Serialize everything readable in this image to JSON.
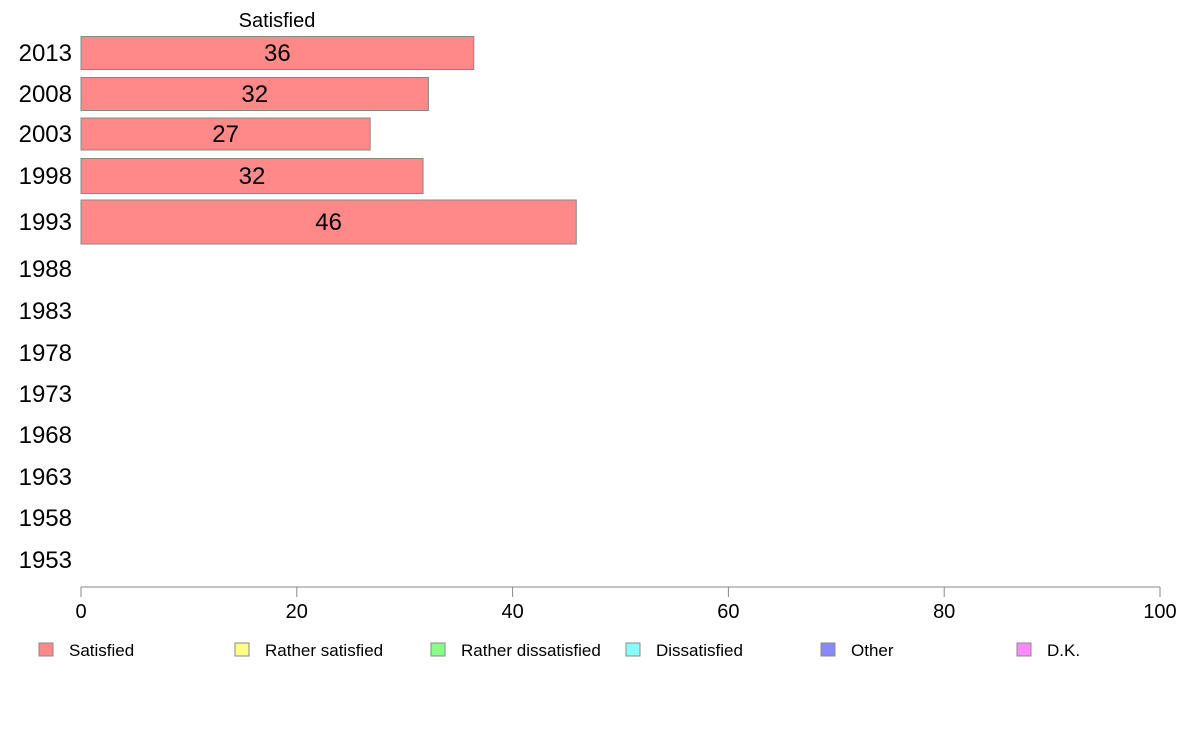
{
  "chart_data": {
    "type": "bar",
    "orientation": "horizontal",
    "top_label": "Satisfied",
    "categories": [
      "2013",
      "2008",
      "2003",
      "1998",
      "1993",
      "1988",
      "1983",
      "1978",
      "1973",
      "1968",
      "1963",
      "1958",
      "1953"
    ],
    "series": [
      {
        "name": "Satisfied",
        "color": "#ff8888",
        "values": [
          36.4,
          32.2,
          26.8,
          31.7,
          45.9,
          null,
          null,
          null,
          null,
          null,
          null,
          null,
          null
        ],
        "labels": [
          "36",
          "32",
          "27",
          "32",
          "46",
          "",
          "",
          "",
          "",
          "",
          "",
          "",
          ""
        ]
      }
    ],
    "xlim": [
      0,
      100
    ],
    "xticks": [
      "0",
      "20",
      "40",
      "60",
      "80",
      "100"
    ],
    "grid": false,
    "legend_position": "bottom",
    "legend": [
      {
        "label": "Satisfied",
        "color": "#ff8888"
      },
      {
        "label": "Rather satisfied",
        "color": "#ffff88"
      },
      {
        "label": "Rather dissatisfied",
        "color": "#88ff88"
      },
      {
        "label": "Dissatisfied",
        "color": "#88ffff"
      },
      {
        "label": "Other",
        "color": "#8888ff"
      },
      {
        "label": "D.K.",
        "color": "#ff88ff"
      }
    ]
  }
}
